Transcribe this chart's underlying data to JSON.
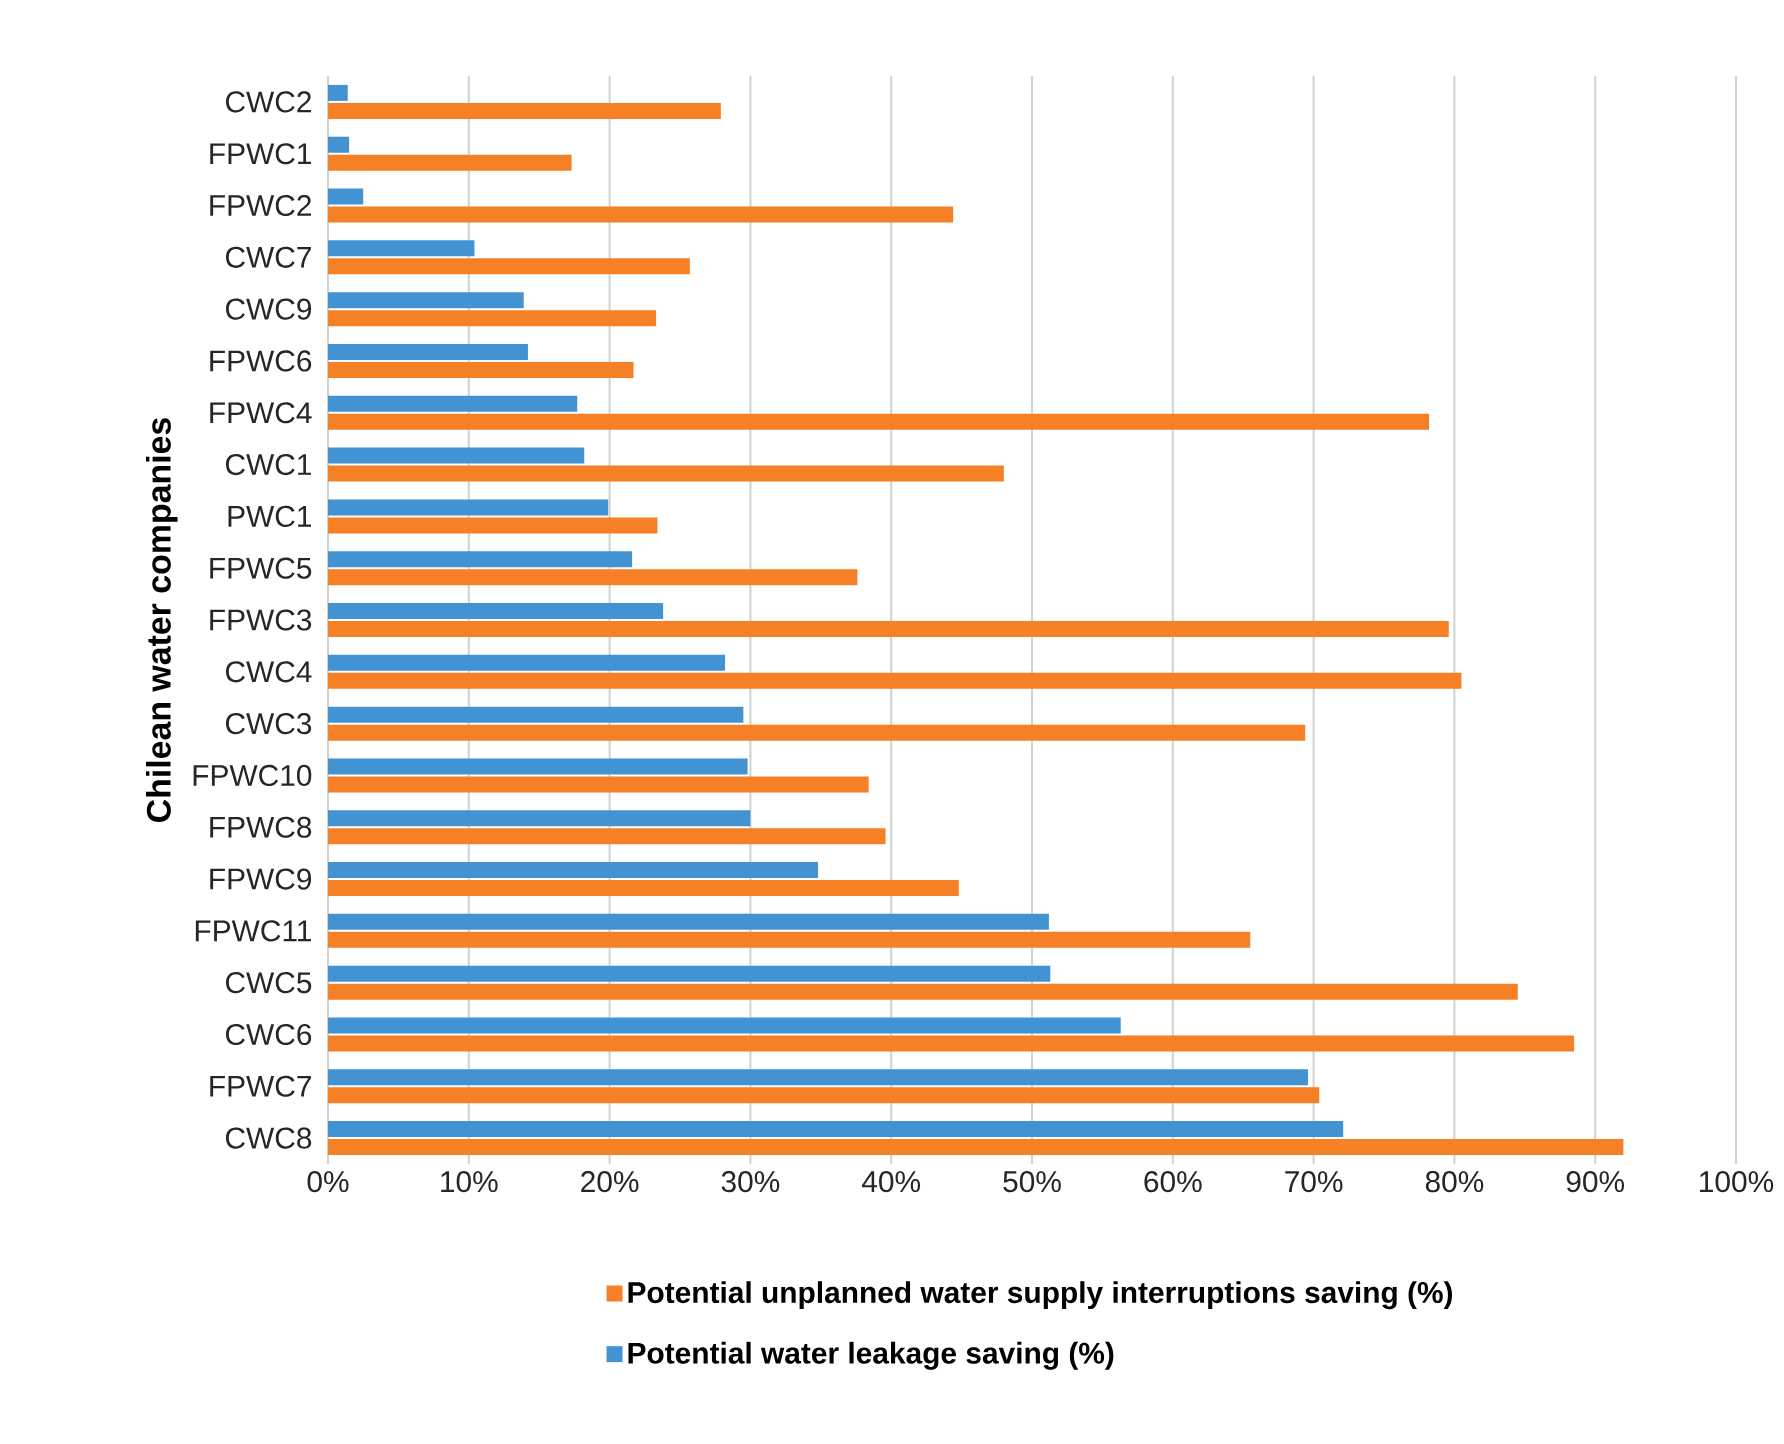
{
  "chart_data": {
    "type": "bar",
    "orientation": "horizontal",
    "ylabel": "Chilean water companies",
    "categories": [
      "CWC2",
      "FPWC1",
      "FPWC2",
      "CWC7",
      "CWC9",
      "FPWC6",
      "FPWC4",
      "CWC1",
      "PWC1",
      "FPWC5",
      "FPWC3",
      "CWC4",
      "CWC3",
      "FPWC10",
      "FPWC8",
      "FPWC9",
      "FPWC11",
      "CWC5",
      "CWC6",
      "FPWC7",
      "CWC8"
    ],
    "series": [
      {
        "name": "Potential unplanned water supply interruptions saving (%)",
        "color": "#f58025",
        "values": [
          27.9,
          17.3,
          44.4,
          25.7,
          23.3,
          21.7,
          78.2,
          48.0,
          23.4,
          37.6,
          79.6,
          80.5,
          69.4,
          38.4,
          39.6,
          44.8,
          65.5,
          84.5,
          88.5,
          70.4,
          92.0
        ]
      },
      {
        "name": "Potential water leakage saving (%)",
        "color": "#4393d3",
        "values": [
          1.4,
          1.5,
          2.5,
          10.4,
          13.9,
          14.2,
          17.7,
          18.2,
          19.9,
          21.6,
          23.8,
          28.2,
          29.5,
          29.8,
          30.0,
          34.8,
          51.2,
          51.3,
          56.3,
          69.6,
          72.1
        ]
      }
    ],
    "xlim": [
      0,
      100
    ],
    "xticks": [
      {
        "value": 0,
        "label": "0%"
      },
      {
        "value": 10,
        "label": "10%"
      },
      {
        "value": 20,
        "label": "20%"
      },
      {
        "value": 30,
        "label": "30%"
      },
      {
        "value": 40,
        "label": "40%"
      },
      {
        "value": 50,
        "label": "50%"
      },
      {
        "value": 60,
        "label": "60%"
      },
      {
        "value": 70,
        "label": "70%"
      },
      {
        "value": 80,
        "label": "80%"
      },
      {
        "value": 90,
        "label": "90%"
      },
      {
        "value": 100,
        "label": "100%"
      }
    ],
    "grid": "x",
    "legend": "bottom"
  }
}
